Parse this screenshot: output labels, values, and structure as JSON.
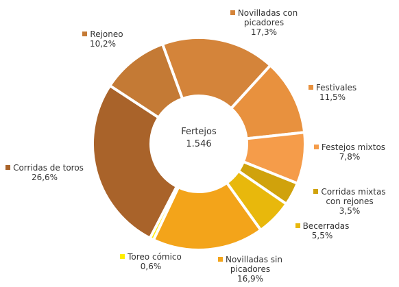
{
  "chart_data": {
    "type": "donut",
    "center_title": "Fertejos",
    "center_text": "1.546",
    "categories": [
      "Novilladas con picadores",
      "Festivales",
      "Festejos mixtos",
      "Corridas mixtas con rejones",
      "Becerradas",
      "Novilladas sin picadores",
      "Toreo cómico",
      "Corridas de toros",
      "Rejoneo"
    ],
    "values": [
      17.3,
      11.5,
      7.8,
      3.5,
      5.5,
      16.9,
      0.6,
      26.6,
      10.2
    ],
    "value_labels": [
      "17,3%",
      "11,5%",
      "7,8%",
      "3,5%",
      "5,5%",
      "16,9%",
      "0,6%",
      "26,6%",
      "10,2%"
    ],
    "colors": [
      "#d4843a",
      "#e8913e",
      "#f59c4a",
      "#d0a20c",
      "#e8b80c",
      "#f3a41a",
      "#ffee00",
      "#a9632a",
      "#c47a35"
    ]
  }
}
